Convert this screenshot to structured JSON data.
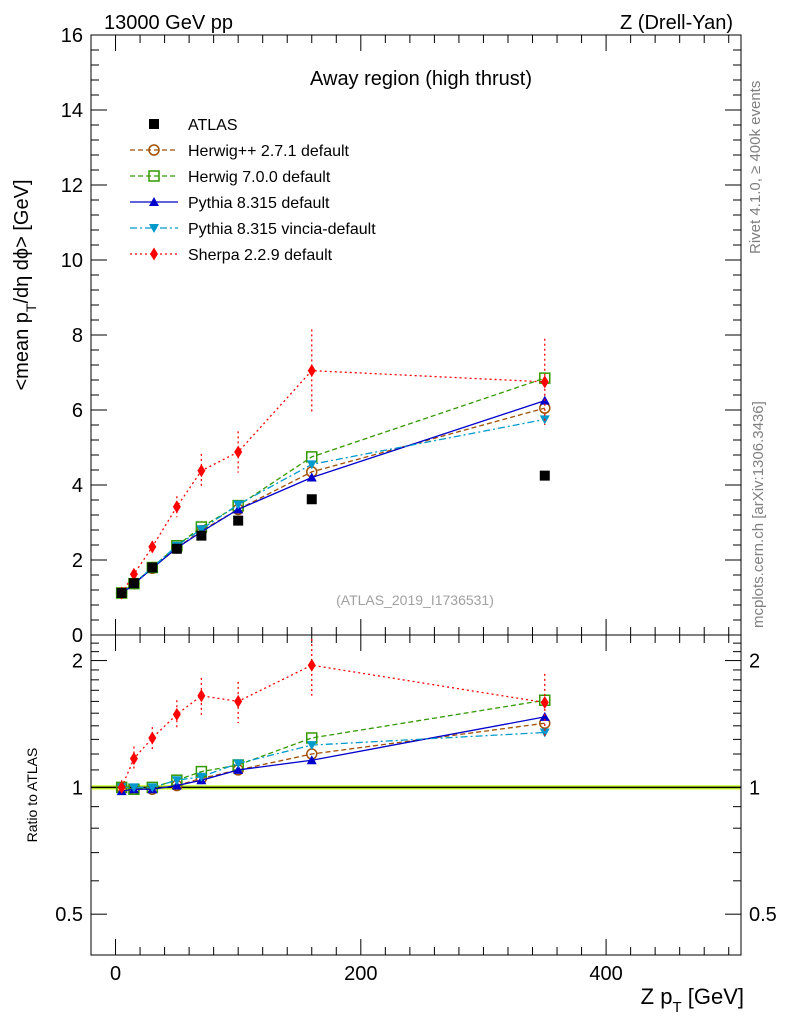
{
  "header": {
    "left": "13000 GeV pp",
    "right": "Z (Drell-Yan)"
  },
  "side": {
    "rivet": "Rivet 4.1.0, ≥ 400k events",
    "mcplots": "mcplots.cern.ch [arXiv:1306.3436]"
  },
  "chart_data": {
    "type": "scatter",
    "title": "Away region (high thrust)",
    "watermark": "(ATLAS_2019_I1736531)",
    "xlabel_main": "Z p",
    "xlabel_sub": "T",
    "xlabel_unit": " [GeV]",
    "ylabel_top": "<mean p",
    "ylabel_sub": "T",
    "ylabel_rest": "/dη dϕ> [GeV]",
    "ylabel_ratio": "Ratio to ATLAS",
    "xlim": [
      -20,
      510
    ],
    "ylim": [
      0,
      16
    ],
    "ratio_ylim": [
      0.4,
      2.3
    ],
    "x_ticks": [
      0,
      200,
      400
    ],
    "x_tick_labels": [
      "0",
      "200",
      "400"
    ],
    "y_ticks": [
      0,
      2,
      4,
      6,
      8,
      10,
      12,
      14,
      16
    ],
    "y_tick_labels": [
      "0",
      "2",
      "4",
      "6",
      "8",
      "10",
      "12",
      "14",
      "16"
    ],
    "ratio_ticks": [
      0.5,
      1,
      2
    ],
    "ratio_tick_labels": [
      "0.5",
      "1",
      "2"
    ],
    "x": [
      5,
      15,
      30,
      50,
      70,
      100,
      160,
      350
    ],
    "series": [
      {
        "name": "ATLAS",
        "color": "#000000",
        "marker": "square",
        "line": "none",
        "values": [
          1.12,
          1.38,
          1.8,
          2.3,
          2.65,
          3.05,
          3.62,
          4.25
        ]
      },
      {
        "name": "Herwig++ 2.7.1 default",
        "color": "#a05000",
        "marker": "open-circle",
        "line": "dashed",
        "values": [
          1.12,
          1.37,
          1.78,
          2.32,
          2.78,
          3.35,
          4.35,
          6.05
        ]
      },
      {
        "name": "Herwig 7.0.0 default",
        "color": "#339900",
        "marker": "open-square",
        "line": "dashed",
        "values": [
          1.12,
          1.37,
          1.8,
          2.38,
          2.88,
          3.45,
          4.75,
          6.85
        ]
      },
      {
        "name": "Pythia 8.315 default",
        "color": "#0000cc",
        "marker": "triangle-up",
        "line": "solid",
        "values": [
          1.1,
          1.36,
          1.78,
          2.32,
          2.75,
          3.35,
          4.2,
          6.25
        ]
      },
      {
        "name": "Pythia 8.315 vincia-default",
        "color": "#0099cc",
        "marker": "triangle-down",
        "line": "dashdot",
        "values": [
          1.12,
          1.38,
          1.8,
          2.38,
          2.82,
          3.48,
          4.55,
          5.75
        ]
      },
      {
        "name": "Sherpa 2.2.9 default",
        "color": "#ff0000",
        "marker": "diamond",
        "line": "dotted",
        "values": [
          1.12,
          1.62,
          2.35,
          3.42,
          4.38,
          4.88,
          7.05,
          6.75
        ],
        "errors": [
          0.05,
          0.12,
          0.15,
          0.28,
          0.45,
          0.55,
          1.1,
          1.15
        ]
      }
    ],
    "ratio_series": [
      {
        "name": "Herwig++ 2.7.1 default",
        "values": [
          1.0,
          0.99,
          0.99,
          1.01,
          1.05,
          1.1,
          1.2,
          1.42
        ]
      },
      {
        "name": "Herwig 7.0.0 default",
        "values": [
          1.0,
          0.99,
          1.0,
          1.04,
          1.09,
          1.13,
          1.31,
          1.61
        ]
      },
      {
        "name": "Pythia 8.315 default",
        "values": [
          0.98,
          0.99,
          0.99,
          1.01,
          1.04,
          1.1,
          1.16,
          1.47
        ]
      },
      {
        "name": "Pythia 8.315 vincia-default",
        "values": [
          1.0,
          1.0,
          1.0,
          1.04,
          1.06,
          1.14,
          1.26,
          1.35
        ]
      },
      {
        "name": "Sherpa 2.2.9 default",
        "values": [
          1.0,
          1.17,
          1.31,
          1.49,
          1.65,
          1.6,
          1.95,
          1.59
        ],
        "errors": [
          0.04,
          0.08,
          0.08,
          0.12,
          0.17,
          0.18,
          0.3,
          0.27
        ]
      }
    ],
    "ratio_reference": 1
  }
}
